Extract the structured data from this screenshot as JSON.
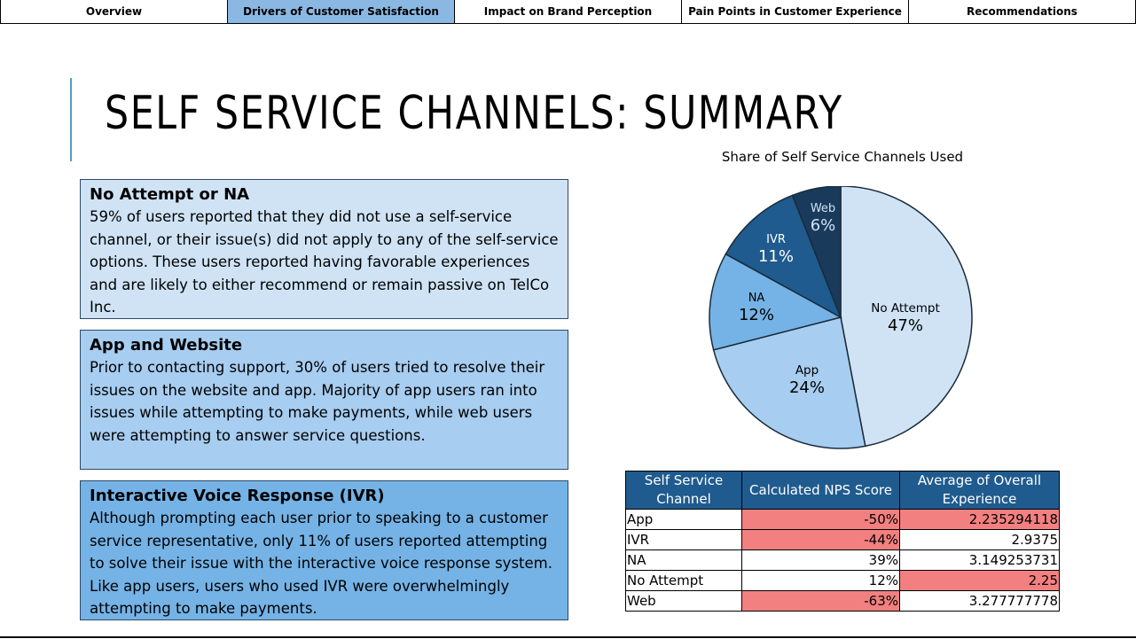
{
  "nav": {
    "tabs": [
      {
        "label": "Overview",
        "active": false
      },
      {
        "label": "Drivers of Customer Satisfaction",
        "active": true
      },
      {
        "label": "Impact on Brand Perception",
        "active": false
      },
      {
        "label": "Pain Points in Customer Experience",
        "active": false
      },
      {
        "label": "Recommendations",
        "active": false
      }
    ]
  },
  "page": {
    "title": "SELF SERVICE CHANNELS: SUMMARY"
  },
  "cards": [
    {
      "heading": "No Attempt or NA",
      "body": "59% of users reported that they did not use a self-service channel, or their issue(s) did not apply to any of the self-service options. These users reported having favorable experiences and are likely to either recommend or remain passive on TelCo Inc."
    },
    {
      "heading": "App and Website",
      "body": "Prior to contacting support, 30% of users tried to resolve their issues on the website and app. Majority of app users ran into issues while attempting to make payments, while web users were attempting to answer service questions."
    },
    {
      "heading": "Interactive Voice Response (IVR)",
      "body": "Although prompting each user prior to speaking to a customer service representative, only 11% of users reported attempting to solve their issue with the interactive voice response system. Like app users, users who used IVR were overwhelmingly attempting to make payments."
    }
  ],
  "chart_data": {
    "type": "pie",
    "title": "Share of Self Service Channels Used",
    "slices": [
      {
        "label": "No Attempt",
        "value": 47,
        "display": "47%",
        "color": "#cfe3f5"
      },
      {
        "label": "App",
        "value": 24,
        "display": "24%",
        "color": "#a7cdf0"
      },
      {
        "label": "NA",
        "value": 12,
        "display": "12%",
        "color": "#75b3e6"
      },
      {
        "label": "IVR",
        "value": 11,
        "display": "11%",
        "color": "#1f5b8e"
      },
      {
        "label": "Web",
        "value": 6,
        "display": "6%",
        "color": "#1a3a5c"
      }
    ]
  },
  "table": {
    "headers": [
      "Self Service Channel",
      "Calculated NPS Score",
      "Average of Overall Experience"
    ],
    "rows": [
      {
        "channel": "App",
        "nps": "-50%",
        "avg": "2.235294118",
        "nps_hl": true,
        "avg_hl": true
      },
      {
        "channel": "IVR",
        "nps": "-44%",
        "avg": "2.9375",
        "nps_hl": true,
        "avg_hl": false
      },
      {
        "channel": "NA",
        "nps": "39%",
        "avg": "3.149253731",
        "nps_hl": false,
        "avg_hl": false
      },
      {
        "channel": "No Attempt",
        "nps": "12%",
        "avg": "2.25",
        "nps_hl": false,
        "avg_hl": true
      },
      {
        "channel": "Web",
        "nps": "-63%",
        "avg": "3.277777778",
        "nps_hl": true,
        "avg_hl": false
      }
    ],
    "highlight_color": "#f28080",
    "header_color": "#1f5b8e"
  }
}
